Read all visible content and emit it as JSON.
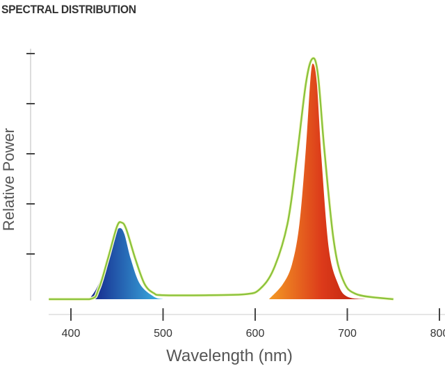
{
  "chart_data": {
    "type": "area",
    "title": "SPECTRAL DISTRIBUTION",
    "xlabel": "Wavelength (nm)",
    "ylabel": "Relative Power",
    "xlim": [
      376,
      800
    ],
    "ylim": [
      0,
      5
    ],
    "x_ticks": [
      400,
      500,
      600,
      700,
      800
    ],
    "x_tick_labels": [
      "400",
      "500",
      "600",
      "700",
      "800"
    ],
    "y_ticks": [
      1,
      2,
      3,
      4,
      5
    ],
    "grid": false,
    "series": [
      {
        "name": "blue-emission",
        "color_start": "#14248a",
        "color_end": "#3cb4e4",
        "points": [
          [
            420,
            0
          ],
          [
            430,
            0.3
          ],
          [
            440,
            0.9
          ],
          [
            448,
            1.3
          ],
          [
            453,
            1.42
          ],
          [
            458,
            1.3
          ],
          [
            465,
            0.8
          ],
          [
            475,
            0.3
          ],
          [
            490,
            0.05
          ],
          [
            500,
            0
          ]
        ]
      },
      {
        "name": "red-emission",
        "color_start": "#f39a25",
        "color_end": "#b8200f",
        "points": [
          [
            615,
            0
          ],
          [
            630,
            0.3
          ],
          [
            640,
            0.7
          ],
          [
            648,
            1.5
          ],
          [
            655,
            3.0
          ],
          [
            660,
            4.4
          ],
          [
            663,
            4.7
          ],
          [
            667,
            4.3
          ],
          [
            672,
            2.8
          ],
          [
            680,
            1.0
          ],
          [
            690,
            0.3
          ],
          [
            700,
            0.05
          ],
          [
            720,
            0
          ]
        ]
      },
      {
        "name": "total-spectrum",
        "color": "#8cc43c",
        "points": [
          [
            376,
            0
          ],
          [
            420,
            0
          ],
          [
            430,
            0.2
          ],
          [
            440,
            0.8
          ],
          [
            450,
            1.45
          ],
          [
            455,
            1.53
          ],
          [
            460,
            1.4
          ],
          [
            470,
            0.8
          ],
          [
            480,
            0.3
          ],
          [
            490,
            0.12
          ],
          [
            500,
            0.08
          ],
          [
            550,
            0.08
          ],
          [
            590,
            0.1
          ],
          [
            605,
            0.2
          ],
          [
            620,
            0.6
          ],
          [
            635,
            1.5
          ],
          [
            645,
            2.8
          ],
          [
            655,
            4.3
          ],
          [
            662,
            4.8
          ],
          [
            668,
            4.5
          ],
          [
            675,
            3.0
          ],
          [
            685,
            1.2
          ],
          [
            695,
            0.4
          ],
          [
            710,
            0.1
          ],
          [
            750,
            0
          ]
        ]
      }
    ]
  }
}
